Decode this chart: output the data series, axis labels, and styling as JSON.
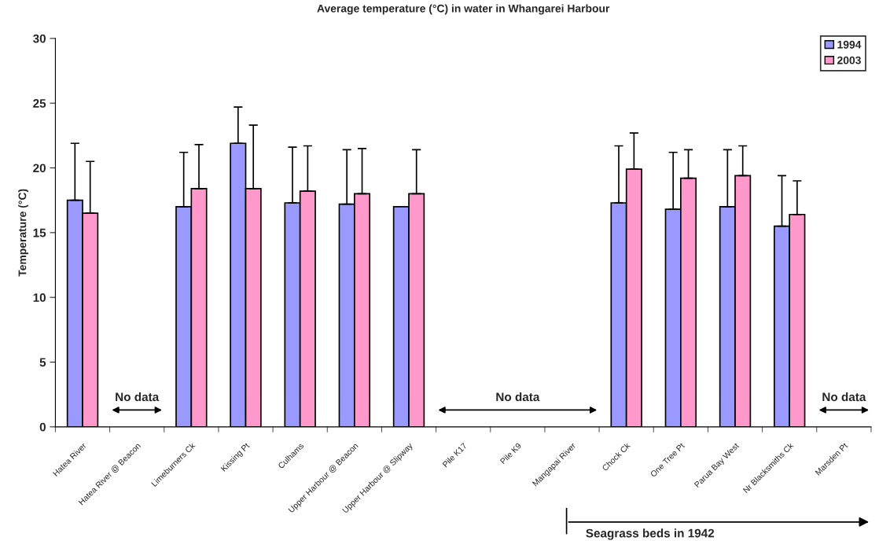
{
  "chart_data": {
    "type": "bar",
    "title": "Average temperature (°C) in water in Whangarei Harbour",
    "ylabel": "Temperature (°C)",
    "categories": [
      "Hatea River",
      "Hatea River @ Beacon",
      "Limeburners Ck",
      "Kissing Pt",
      "Culhams",
      "Upper Harbour @ Beacon",
      "Upper Harbour @ Slipway",
      "Pile K17",
      "Pile K9",
      "Mangapai River",
      "Chock Ck",
      "One Tree Pt",
      "Parua Bay West",
      "Nr Blacksmiths Ck",
      "Marsden Pt"
    ],
    "series": [
      {
        "name": "1994",
        "color": "#9999ff",
        "values": [
          17.5,
          null,
          17.0,
          21.9,
          17.3,
          17.2,
          17.0,
          null,
          null,
          null,
          17.3,
          16.8,
          17.0,
          15.5,
          null
        ],
        "errors": [
          [
            17.5,
            21.9
          ],
          null,
          [
            17.0,
            21.2
          ],
          [
            21.9,
            24.7
          ],
          [
            17.3,
            21.6
          ],
          [
            17.2,
            21.4
          ],
          null,
          null,
          null,
          null,
          [
            17.3,
            21.7
          ],
          [
            16.8,
            21.2
          ],
          [
            17.0,
            21.4
          ],
          [
            15.5,
            19.4
          ],
          null
        ]
      },
      {
        "name": "2003",
        "color": "#ff99cc",
        "values": [
          16.5,
          null,
          18.4,
          18.4,
          18.2,
          18.0,
          18.0,
          null,
          null,
          null,
          19.9,
          19.2,
          19.4,
          16.4,
          null
        ],
        "errors": [
          [
            16.5,
            20.5
          ],
          null,
          [
            18.4,
            21.8
          ],
          [
            18.4,
            23.3
          ],
          [
            18.2,
            21.7
          ],
          [
            18.0,
            21.5
          ],
          [
            18.0,
            21.4
          ],
          null,
          null,
          null,
          [
            19.9,
            22.7
          ],
          [
            19.2,
            21.4
          ],
          [
            19.4,
            21.7
          ],
          [
            16.4,
            19.0
          ],
          null
        ]
      }
    ],
    "ylim": [
      0,
      30
    ],
    "yticks": [
      0,
      5,
      10,
      15,
      20,
      25,
      30
    ],
    "grid": false,
    "legend": "top right",
    "annotations": [
      "No data",
      "No data",
      "No data",
      "Seagrass beds in 1942"
    ]
  }
}
